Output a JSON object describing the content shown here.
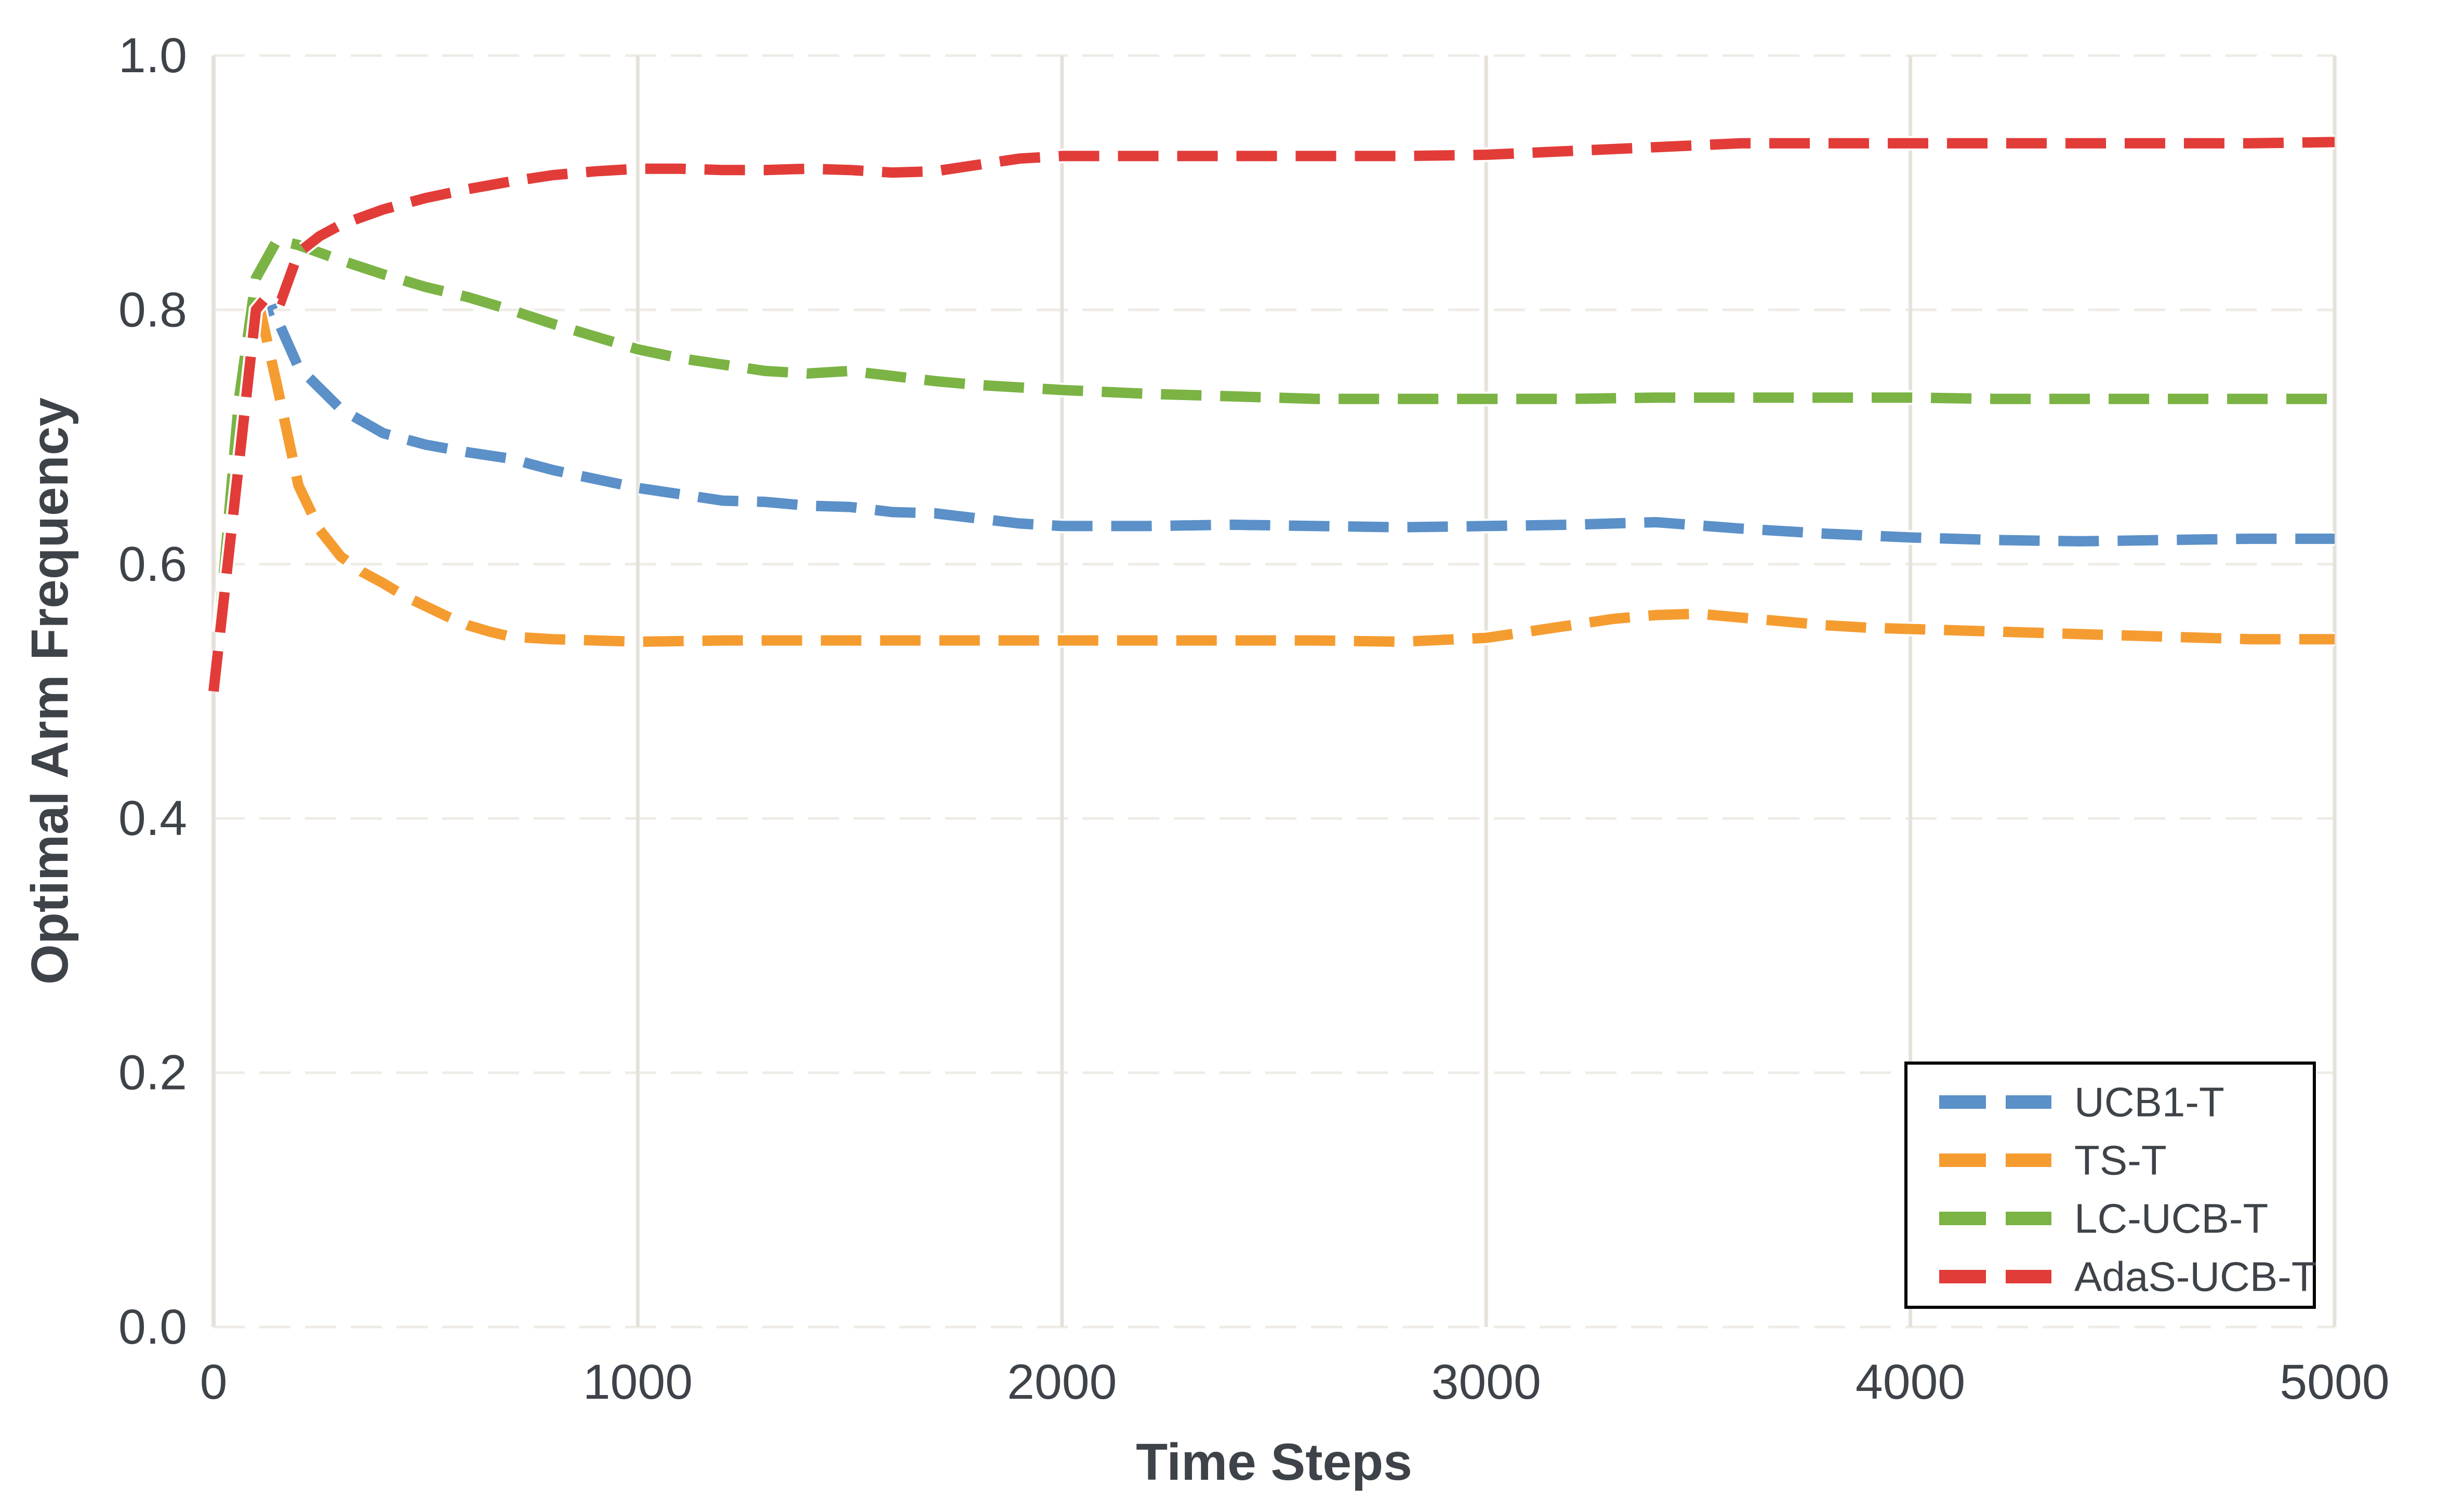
{
  "figure": {
    "background": "#ffffff"
  },
  "styles": {
    "text_color": "#3e4349",
    "grid_color": "#efebe5",
    "spine_color": "#e6e2db",
    "legend_border_color": "#000000",
    "legend_background": "#ffffff",
    "halo_color": "#ffffff"
  },
  "chart_data": {
    "type": "line",
    "title": "",
    "xlabel": "Time Steps",
    "ylabel": "Optimal Arm Frequency",
    "xlim": [
      0,
      5000
    ],
    "ylim": [
      0.0,
      1.0
    ],
    "xticks": [
      0,
      1000,
      2000,
      3000,
      4000,
      5000
    ],
    "xtick_labels": [
      "0",
      "1000",
      "2000",
      "3000",
      "4000",
      "5000"
    ],
    "yticks": [
      0.0,
      0.2,
      0.4,
      0.6,
      0.8,
      1.0
    ],
    "ytick_labels": [
      "0.0",
      "0.2",
      "0.4",
      "0.6",
      "0.8",
      "1.0"
    ],
    "grid": true,
    "grid_style": "horizontal-dashed, vertical-solid",
    "line_style": "dashed",
    "legend_position": "lower right",
    "legend_entries": [
      "UCB1-T",
      "TS-T",
      "LC-UCB-T",
      "AdaS-UCB-T"
    ],
    "series": [
      {
        "name": "UCB1-T",
        "color": "#5b90c8",
        "points": [
          [
            0,
            0.5
          ],
          [
            60,
            0.72
          ],
          [
            100,
            0.795
          ],
          [
            140,
            0.8
          ],
          [
            200,
            0.755
          ],
          [
            300,
            0.722
          ],
          [
            400,
            0.703
          ],
          [
            500,
            0.694
          ],
          [
            600,
            0.688
          ],
          [
            700,
            0.683
          ],
          [
            800,
            0.674
          ],
          [
            900,
            0.667
          ],
          [
            1000,
            0.66
          ],
          [
            1100,
            0.655
          ],
          [
            1200,
            0.65
          ],
          [
            1300,
            0.649
          ],
          [
            1400,
            0.646
          ],
          [
            1500,
            0.645
          ],
          [
            1600,
            0.641
          ],
          [
            1700,
            0.64
          ],
          [
            1800,
            0.636
          ],
          [
            1900,
            0.632
          ],
          [
            2000,
            0.63
          ],
          [
            2200,
            0.63
          ],
          [
            2400,
            0.631
          ],
          [
            2600,
            0.63
          ],
          [
            2800,
            0.629
          ],
          [
            3000,
            0.63
          ],
          [
            3200,
            0.631
          ],
          [
            3400,
            0.633
          ],
          [
            3600,
            0.628
          ],
          [
            3800,
            0.624
          ],
          [
            4000,
            0.621
          ],
          [
            4200,
            0.619
          ],
          [
            4400,
            0.618
          ],
          [
            4600,
            0.619
          ],
          [
            4800,
            0.62
          ],
          [
            5000,
            0.62
          ]
        ]
      },
      {
        "name": "TS-T",
        "color": "#f59c31",
        "points": [
          [
            0,
            0.5
          ],
          [
            60,
            0.7
          ],
          [
            100,
            0.815
          ],
          [
            150,
            0.74
          ],
          [
            200,
            0.662
          ],
          [
            250,
            0.627
          ],
          [
            300,
            0.606
          ],
          [
            350,
            0.594
          ],
          [
            400,
            0.585
          ],
          [
            450,
            0.575
          ],
          [
            500,
            0.567
          ],
          [
            550,
            0.559
          ],
          [
            600,
            0.552
          ],
          [
            650,
            0.547
          ],
          [
            700,
            0.543
          ],
          [
            800,
            0.541
          ],
          [
            900,
            0.54
          ],
          [
            1000,
            0.539
          ],
          [
            1200,
            0.54
          ],
          [
            1400,
            0.54
          ],
          [
            1600,
            0.54
          ],
          [
            1800,
            0.54
          ],
          [
            2000,
            0.54
          ],
          [
            2200,
            0.54
          ],
          [
            2400,
            0.54
          ],
          [
            2600,
            0.54
          ],
          [
            2800,
            0.539
          ],
          [
            3000,
            0.542
          ],
          [
            3100,
            0.547
          ],
          [
            3200,
            0.552
          ],
          [
            3300,
            0.557
          ],
          [
            3400,
            0.56
          ],
          [
            3500,
            0.561
          ],
          [
            3600,
            0.558
          ],
          [
            3700,
            0.555
          ],
          [
            3800,
            0.552
          ],
          [
            3900,
            0.55
          ],
          [
            4000,
            0.549
          ],
          [
            4200,
            0.547
          ],
          [
            4400,
            0.545
          ],
          [
            4600,
            0.543
          ],
          [
            4800,
            0.541
          ],
          [
            5000,
            0.541
          ]
        ]
      },
      {
        "name": "LC-UCB-T",
        "color": "#7bb344",
        "points": [
          [
            0,
            0.5
          ],
          [
            60,
            0.73
          ],
          [
            100,
            0.825
          ],
          [
            150,
            0.855
          ],
          [
            200,
            0.851
          ],
          [
            300,
            0.839
          ],
          [
            400,
            0.828
          ],
          [
            500,
            0.818
          ],
          [
            600,
            0.81
          ],
          [
            700,
            0.8
          ],
          [
            800,
            0.789
          ],
          [
            900,
            0.779
          ],
          [
            1000,
            0.769
          ],
          [
            1100,
            0.762
          ],
          [
            1200,
            0.757
          ],
          [
            1300,
            0.752
          ],
          [
            1400,
            0.75
          ],
          [
            1500,
            0.752
          ],
          [
            1600,
            0.748
          ],
          [
            1700,
            0.744
          ],
          [
            1800,
            0.741
          ],
          [
            1900,
            0.739
          ],
          [
            2000,
            0.737
          ],
          [
            2200,
            0.734
          ],
          [
            2400,
            0.732
          ],
          [
            2600,
            0.73
          ],
          [
            2800,
            0.73
          ],
          [
            3000,
            0.73
          ],
          [
            3200,
            0.73
          ],
          [
            3400,
            0.731
          ],
          [
            3600,
            0.731
          ],
          [
            3800,
            0.731
          ],
          [
            4000,
            0.731
          ],
          [
            4200,
            0.73
          ],
          [
            4400,
            0.73
          ],
          [
            4600,
            0.73
          ],
          [
            4800,
            0.73
          ],
          [
            5000,
            0.73
          ]
        ]
      },
      {
        "name": "AdaS-UCB-T",
        "color": "#e23c39",
        "points": [
          [
            0,
            0.5
          ],
          [
            60,
            0.68
          ],
          [
            100,
            0.8
          ],
          [
            130,
            0.812
          ],
          [
            160,
            0.808
          ],
          [
            200,
            0.845
          ],
          [
            250,
            0.858
          ],
          [
            300,
            0.867
          ],
          [
            400,
            0.879
          ],
          [
            500,
            0.888
          ],
          [
            600,
            0.895
          ],
          [
            700,
            0.901
          ],
          [
            800,
            0.906
          ],
          [
            900,
            0.909
          ],
          [
            1000,
            0.911
          ],
          [
            1100,
            0.911
          ],
          [
            1200,
            0.91
          ],
          [
            1300,
            0.91
          ],
          [
            1400,
            0.911
          ],
          [
            1500,
            0.91
          ],
          [
            1600,
            0.908
          ],
          [
            1700,
            0.909
          ],
          [
            1800,
            0.914
          ],
          [
            1900,
            0.919
          ],
          [
            2000,
            0.921
          ],
          [
            2200,
            0.921
          ],
          [
            2400,
            0.921
          ],
          [
            2600,
            0.921
          ],
          [
            2800,
            0.921
          ],
          [
            3000,
            0.922
          ],
          [
            3200,
            0.925
          ],
          [
            3400,
            0.928
          ],
          [
            3600,
            0.931
          ],
          [
            3800,
            0.931
          ],
          [
            4000,
            0.931
          ],
          [
            4200,
            0.931
          ],
          [
            4400,
            0.931
          ],
          [
            4600,
            0.931
          ],
          [
            4800,
            0.931
          ],
          [
            5000,
            0.932
          ]
        ]
      }
    ]
  }
}
